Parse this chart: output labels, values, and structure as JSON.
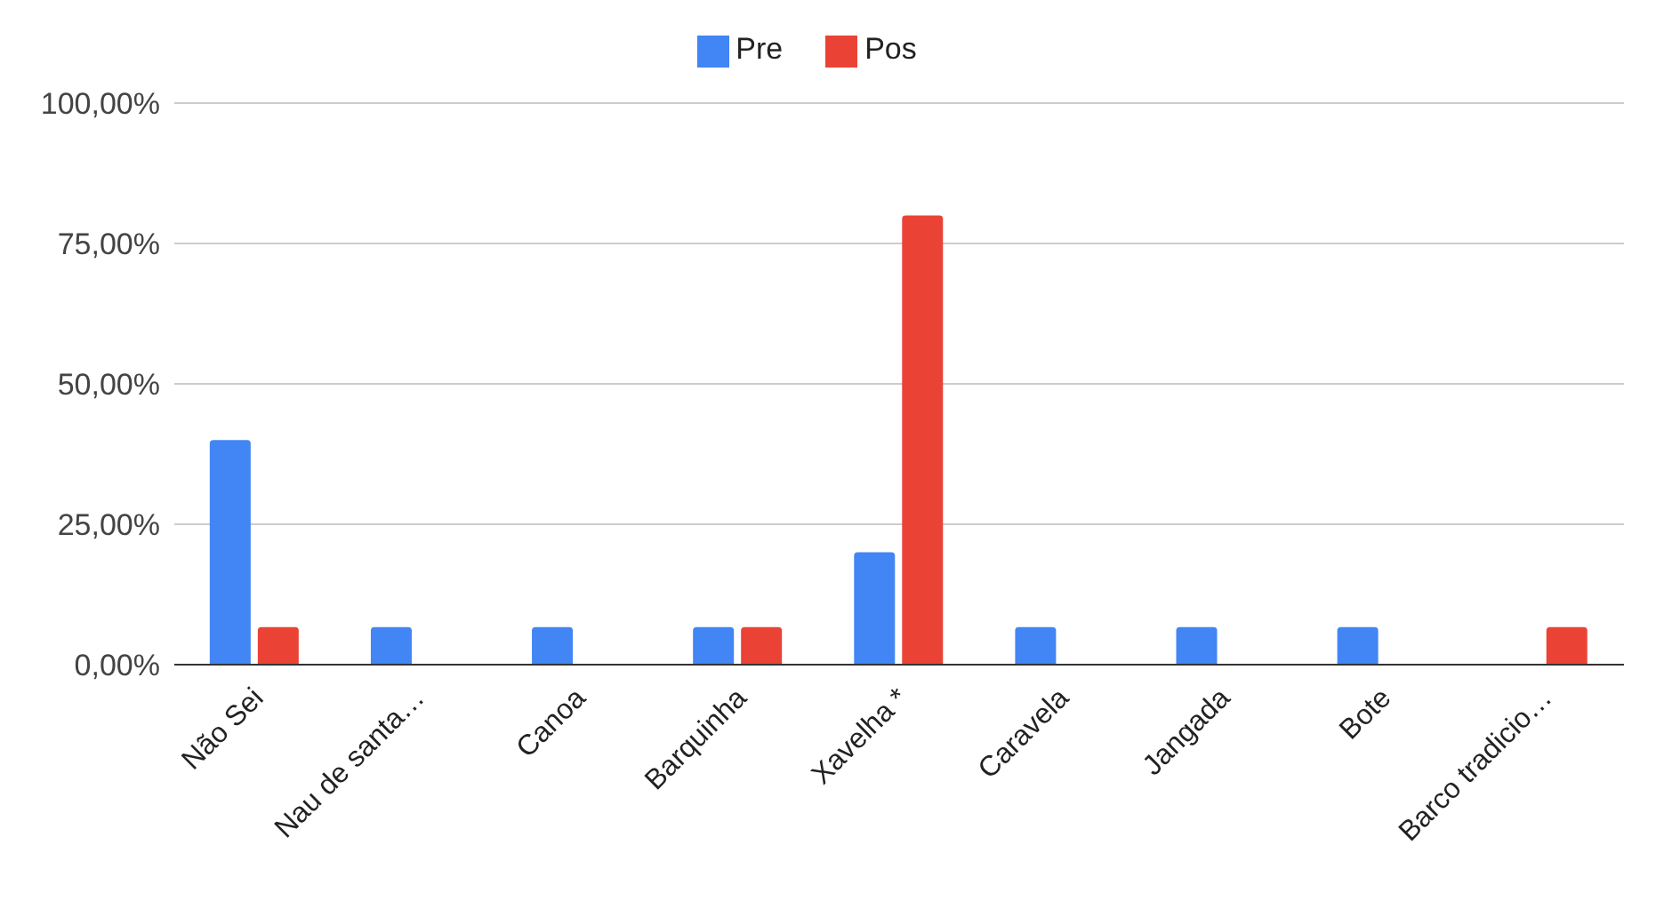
{
  "chart_data": {
    "type": "bar",
    "categories": [
      "Não Sei",
      "Nau de santa…",
      "Canoa",
      "Barquinha",
      "Xavelha *",
      "Caravela",
      "Jangada",
      "Bote",
      "Barco tradicio…"
    ],
    "series": [
      {
        "name": "Pre",
        "color": "#4285f4",
        "values": [
          40,
          6.7,
          6.7,
          6.7,
          20,
          6.7,
          6.7,
          6.7,
          0
        ]
      },
      {
        "name": "Pos",
        "color": "#ea4335",
        "values": [
          6.7,
          0,
          0,
          6.7,
          80,
          0,
          0,
          0,
          6.7
        ]
      }
    ],
    "ylim": [
      0,
      100
    ],
    "yticks": [
      {
        "value": 0,
        "label": "0,00%"
      },
      {
        "value": 25,
        "label": "25,00%"
      },
      {
        "value": 50,
        "label": "50,00%"
      },
      {
        "value": 75,
        "label": "75,00%"
      },
      {
        "value": 100,
        "label": "100,00%"
      }
    ],
    "grid": "y",
    "legend": "top"
  }
}
